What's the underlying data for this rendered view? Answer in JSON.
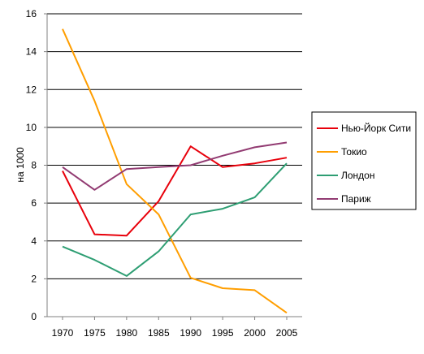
{
  "chart_data": {
    "type": "line",
    "title": "",
    "xlabel": "",
    "ylabel": "на 1000",
    "x": [
      1970,
      1975,
      1980,
      1985,
      1990,
      1995,
      2000,
      2005
    ],
    "ylim": [
      0,
      16
    ],
    "yticks": [
      0,
      2,
      4,
      6,
      8,
      10,
      12,
      14,
      16
    ],
    "grid": "horizontal",
    "legend_position": "right",
    "series": [
      {
        "name": "Нью-Йорк Сити",
        "color": "#e8000b",
        "values": [
          7.7,
          4.35,
          4.28,
          6.1,
          9.0,
          7.9,
          8.1,
          8.4
        ]
      },
      {
        "name": "Токио",
        "color": "#ff9e00",
        "values": [
          15.2,
          11.4,
          7.0,
          5.4,
          2.05,
          1.5,
          1.4,
          0.2
        ]
      },
      {
        "name": "Лондон",
        "color": "#2e9e73",
        "values": [
          3.7,
          3.0,
          2.15,
          3.45,
          5.4,
          5.7,
          6.3,
          8.1
        ]
      },
      {
        "name": "Париж",
        "color": "#923b72",
        "values": [
          7.9,
          6.7,
          7.8,
          7.9,
          8.0,
          8.5,
          8.95,
          9.2
        ]
      }
    ]
  }
}
